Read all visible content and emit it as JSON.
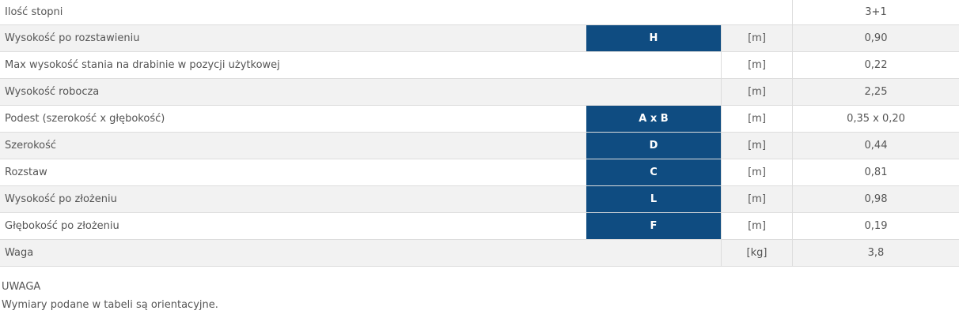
{
  "table": {
    "rows": [
      {
        "label": "Ilość stopni",
        "value": "3+1"
      },
      {
        "label": "Wysokość po rozstawieniu",
        "code": "H",
        "unit": "[m]",
        "value": "0,90"
      },
      {
        "label": "Max wysokość stania na drabinie w pozycji użytkowej",
        "unit": "[m]",
        "value": "0,22"
      },
      {
        "label": "Wysokość robocza",
        "unit": "[m]",
        "value": "2,25"
      },
      {
        "label": "Podest (szerokość x głębokość)",
        "code": "A x B",
        "unit": "[m]",
        "value": "0,35 x 0,20"
      },
      {
        "label": "Szerokość",
        "code": "D",
        "unit": "[m]",
        "value": "0,44"
      },
      {
        "label": "Rozstaw",
        "code": "C",
        "unit": "[m]",
        "value": "0,81"
      },
      {
        "label": "Wysokość po złożeniu",
        "code": "L",
        "unit": "[m]",
        "value": "0,98"
      },
      {
        "label": "Głębokość po złożeniu",
        "code": "F",
        "unit": "[m]",
        "value": "0,19"
      },
      {
        "label": "Waga",
        "unit": "[kg]",
        "value": "3,8"
      }
    ]
  },
  "note": {
    "title": "UWAGA",
    "text": "Wymiary podane w tabeli są orientacyjne."
  }
}
